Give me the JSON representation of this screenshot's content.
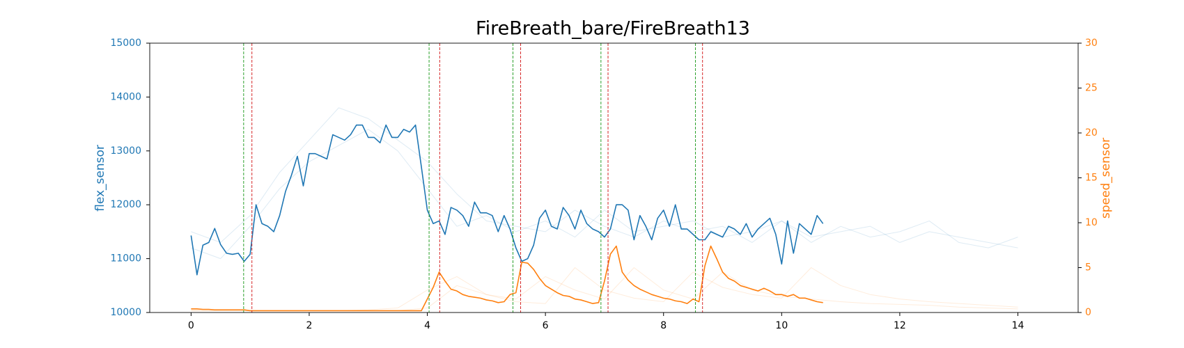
{
  "chart_data": {
    "type": "line",
    "title": "FireBreath_bare/FireBreath13",
    "y_label": "flex_sensor",
    "y2_label": "speed_sensor",
    "xlim": [
      -0.7,
      15.02
    ],
    "xticks": [
      0,
      2,
      4,
      6,
      8,
      10,
      12,
      14
    ],
    "ylim": [
      10000,
      15000
    ],
    "yticks": [
      10000,
      11000,
      12000,
      13000,
      14000,
      15000
    ],
    "y2lim": [
      0,
      30
    ],
    "y2ticks": [
      0,
      5,
      10,
      15,
      20,
      25,
      30
    ],
    "y_color": "#1f77b4",
    "y2_color": "#ff7f0e",
    "vlines": [
      {
        "x": 0.89,
        "color": "#2ca02c"
      },
      {
        "x": 1.03,
        "color": "#d62728"
      },
      {
        "x": 4.03,
        "color": "#2ca02c"
      },
      {
        "x": 4.21,
        "color": "#d62728"
      },
      {
        "x": 5.45,
        "color": "#2ca02c"
      },
      {
        "x": 5.58,
        "color": "#d62728"
      },
      {
        "x": 6.94,
        "color": "#2ca02c"
      },
      {
        "x": 7.06,
        "color": "#d62728"
      },
      {
        "x": 8.54,
        "color": "#2ca02c"
      },
      {
        "x": 8.66,
        "color": "#d62728"
      }
    ],
    "series": [
      {
        "color": "#1f77b4",
        "opacity": 0.15,
        "width": 1,
        "x": [
          0,
          0.5,
          1,
          1.5,
          2,
          2.5,
          3,
          3.5,
          4,
          4.5,
          5,
          5.5,
          6,
          6.5,
          7,
          7.5,
          8,
          8.5,
          9,
          9.5,
          10,
          10.5,
          11,
          11.5,
          12,
          12.5,
          13,
          13.5,
          14
        ],
        "values": [
          11500,
          11300,
          11800,
          12600,
          13200,
          13800,
          13600,
          13200,
          12800,
          12200,
          11700,
          11600,
          11500,
          11900,
          11600,
          11400,
          11700,
          11500,
          11600,
          11300,
          11700,
          11400,
          11500,
          11600,
          11300,
          11500,
          11400,
          11300,
          11200
        ]
      },
      {
        "color": "#1f77b4",
        "opacity": 0.15,
        "width": 1,
        "x": [
          0,
          0.5,
          1,
          1.5,
          2,
          2.5,
          3,
          3.5,
          4,
          4.5,
          5,
          5.5,
          6,
          6.5,
          7,
          7.5,
          8,
          8.5,
          9,
          9.5,
          10,
          10.5,
          11,
          11.5,
          12,
          12.5,
          13,
          13.5,
          14
        ],
        "values": [
          11200,
          11000,
          11600,
          12300,
          12800,
          13100,
          13400,
          13000,
          12300,
          11600,
          11800,
          11500,
          11700,
          11400,
          11900,
          11500,
          11600,
          11700,
          11400,
          11500,
          11700,
          11300,
          11600,
          11400,
          11500,
          11700,
          11300,
          11200,
          11400
        ]
      },
      {
        "color": "#ff7f0e",
        "opacity": 0.15,
        "width": 1,
        "axis": "y2",
        "x": [
          0,
          0.5,
          1,
          1.5,
          2,
          2.5,
          3,
          3.5,
          4,
          4.5,
          5,
          5.5,
          6,
          6.5,
          7,
          7.5,
          8,
          8.5,
          9,
          9.5,
          10,
          10.5,
          11,
          11.5,
          12,
          12.5,
          13,
          13.5,
          14
        ],
        "values": [
          0.2,
          0.2,
          0.2,
          0.2,
          0.2,
          0.2,
          0.3,
          0.5,
          2.5,
          4,
          2,
          1.5,
          4,
          2.5,
          1.5,
          5,
          2.5,
          1.5,
          4.5,
          2.5,
          1.8,
          1.5,
          1.2,
          1,
          0.9,
          0.8,
          0.6,
          0.5,
          0.4
        ]
      },
      {
        "color": "#ff7f0e",
        "opacity": 0.15,
        "width": 1,
        "axis": "y2",
        "x": [
          0,
          0.5,
          1,
          1.5,
          2,
          2.5,
          3,
          3.5,
          4,
          4.5,
          5,
          5.5,
          6,
          6.5,
          7,
          7.5,
          8,
          8.5,
          9,
          9.5,
          10,
          10.5,
          11,
          11.5,
          12,
          12.5,
          13,
          13.5,
          14
        ],
        "values": [
          0.2,
          0.2,
          0.2,
          0.2,
          0.2,
          0.2,
          0.2,
          0.2,
          0.5,
          3,
          2,
          1.2,
          1,
          5,
          2.5,
          1.6,
          1.2,
          4.5,
          2.8,
          2,
          1.6,
          5,
          3,
          2,
          1.5,
          1.2,
          1,
          0.8,
          0.6
        ]
      },
      {
        "color": "#1f77b4",
        "opacity": 1,
        "width": 1.6,
        "x": [
          0,
          0.1,
          0.2,
          0.3,
          0.4,
          0.5,
          0.6,
          0.7,
          0.8,
          0.9,
          1,
          1.1,
          1.2,
          1.3,
          1.4,
          1.5,
          1.6,
          1.7,
          1.8,
          1.9,
          2,
          2.1,
          2.2,
          2.3,
          2.4,
          2.5,
          2.6,
          2.7,
          2.8,
          2.9,
          3,
          3.1,
          3.2,
          3.3,
          3.4,
          3.5,
          3.6,
          3.7,
          3.8,
          3.9,
          4,
          4.1,
          4.2,
          4.3,
          4.4,
          4.5,
          4.6,
          4.7,
          4.8,
          4.9,
          5,
          5.1,
          5.2,
          5.3,
          5.4,
          5.5,
          5.6,
          5.7,
          5.8,
          5.9,
          6,
          6.1,
          6.2,
          6.3,
          6.4,
          6.5,
          6.6,
          6.7,
          6.8,
          6.9,
          7,
          7.1,
          7.2,
          7.3,
          7.4,
          7.5,
          7.6,
          7.7,
          7.8,
          7.9,
          8,
          8.1,
          8.2,
          8.3,
          8.4,
          8.5,
          8.6,
          8.7,
          8.8,
          8.9,
          9,
          9.1,
          9.2,
          9.3,
          9.4,
          9.5,
          9.6,
          9.7,
          9.8,
          9.9,
          10,
          10.1,
          10.2,
          10.3,
          10.4,
          10.5,
          10.6,
          10.7
        ],
        "values": [
          11430,
          10700,
          11250,
          11300,
          11560,
          11260,
          11100,
          11080,
          11100,
          10950,
          11080,
          12000,
          11650,
          11600,
          11500,
          11800,
          12250,
          12550,
          12900,
          12350,
          12950,
          12950,
          12900,
          12850,
          13300,
          13250,
          13200,
          13300,
          13480,
          13480,
          13250,
          13250,
          13150,
          13480,
          13250,
          13250,
          13400,
          13350,
          13480,
          12700,
          11900,
          11650,
          11700,
          11450,
          11950,
          11900,
          11800,
          11600,
          12050,
          11850,
          11850,
          11800,
          11500,
          11800,
          11550,
          11200,
          10950,
          11000,
          11250,
          11750,
          11900,
          11600,
          11550,
          11950,
          11800,
          11550,
          11900,
          11650,
          11550,
          11500,
          11400,
          11550,
          12000,
          12000,
          11900,
          11350,
          11800,
          11600,
          11350,
          11750,
          11900,
          11600,
          12000,
          11550,
          11550,
          11450,
          11350,
          11350,
          11500,
          11450,
          11400,
          11600,
          11550,
          11450,
          11650,
          11400,
          11550,
          11650,
          11750,
          11450,
          10900,
          11700,
          11100,
          11650,
          11550,
          11450,
          11800,
          11650
        ]
      },
      {
        "color": "#ff7f0e",
        "opacity": 1,
        "width": 1.6,
        "axis": "y2",
        "x": [
          0,
          0.1,
          0.2,
          0.3,
          0.4,
          0.5,
          0.6,
          0.7,
          0.8,
          0.9,
          1,
          1.1,
          1.2,
          1.3,
          1.4,
          1.5,
          1.6,
          1.7,
          1.8,
          1.9,
          2,
          2.1,
          2.2,
          2.3,
          2.4,
          2.5,
          2.6,
          2.7,
          2.8,
          2.9,
          3,
          3.1,
          3.2,
          3.3,
          3.4,
          3.5,
          3.6,
          3.7,
          3.8,
          3.9,
          4,
          4.1,
          4.2,
          4.3,
          4.4,
          4.5,
          4.6,
          4.7,
          4.8,
          4.9,
          5,
          5.1,
          5.2,
          5.3,
          5.4,
          5.5,
          5.6,
          5.7,
          5.8,
          5.9,
          6,
          6.1,
          6.2,
          6.3,
          6.4,
          6.5,
          6.6,
          6.7,
          6.8,
          6.9,
          7,
          7.1,
          7.2,
          7.3,
          7.4,
          7.5,
          7.6,
          7.7,
          7.8,
          7.9,
          8,
          8.1,
          8.2,
          8.3,
          8.4,
          8.5,
          8.6,
          8.7,
          8.8,
          8.9,
          9,
          9.1,
          9.2,
          9.3,
          9.4,
          9.5,
          9.6,
          9.7,
          9.8,
          9.9,
          10,
          10.1,
          10.2,
          10.3,
          10.4,
          10.5,
          10.6,
          10.7
        ],
        "values": [
          0.4,
          0.4,
          0.35,
          0.35,
          0.3,
          0.3,
          0.3,
          0.3,
          0.3,
          0.3,
          0.2,
          0.2,
          0.2,
          0.2,
          0.2,
          0.2,
          0.2,
          0.2,
          0.2,
          0.2,
          0.2,
          0.2,
          0.2,
          0.2,
          0.2,
          0.2,
          0.2,
          0.2,
          0.2,
          0.2,
          0.2,
          0.2,
          0.2,
          0.2,
          0.2,
          0.2,
          0.2,
          0.2,
          0.2,
          0.2,
          1.5,
          2.8,
          4.5,
          3.5,
          2.6,
          2.4,
          2.0,
          1.8,
          1.7,
          1.6,
          1.4,
          1.3,
          1.1,
          1.2,
          2.0,
          2.2,
          5.6,
          5.5,
          4.8,
          3.8,
          3.0,
          2.6,
          2.2,
          1.9,
          1.8,
          1.5,
          1.4,
          1.2,
          1.0,
          1.1,
          3.5,
          6.5,
          7.4,
          4.5,
          3.6,
          3.0,
          2.6,
          2.3,
          2.0,
          1.8,
          1.6,
          1.5,
          1.3,
          1.2,
          1.0,
          1.5,
          1.2,
          5.2,
          7.4,
          6.0,
          4.5,
          3.8,
          3.5,
          3.0,
          2.8,
          2.6,
          2.4,
          2.7,
          2.4,
          2.0,
          2.0,
          1.8,
          2.0,
          1.6,
          1.6,
          1.4,
          1.2,
          1.1
        ]
      }
    ]
  }
}
